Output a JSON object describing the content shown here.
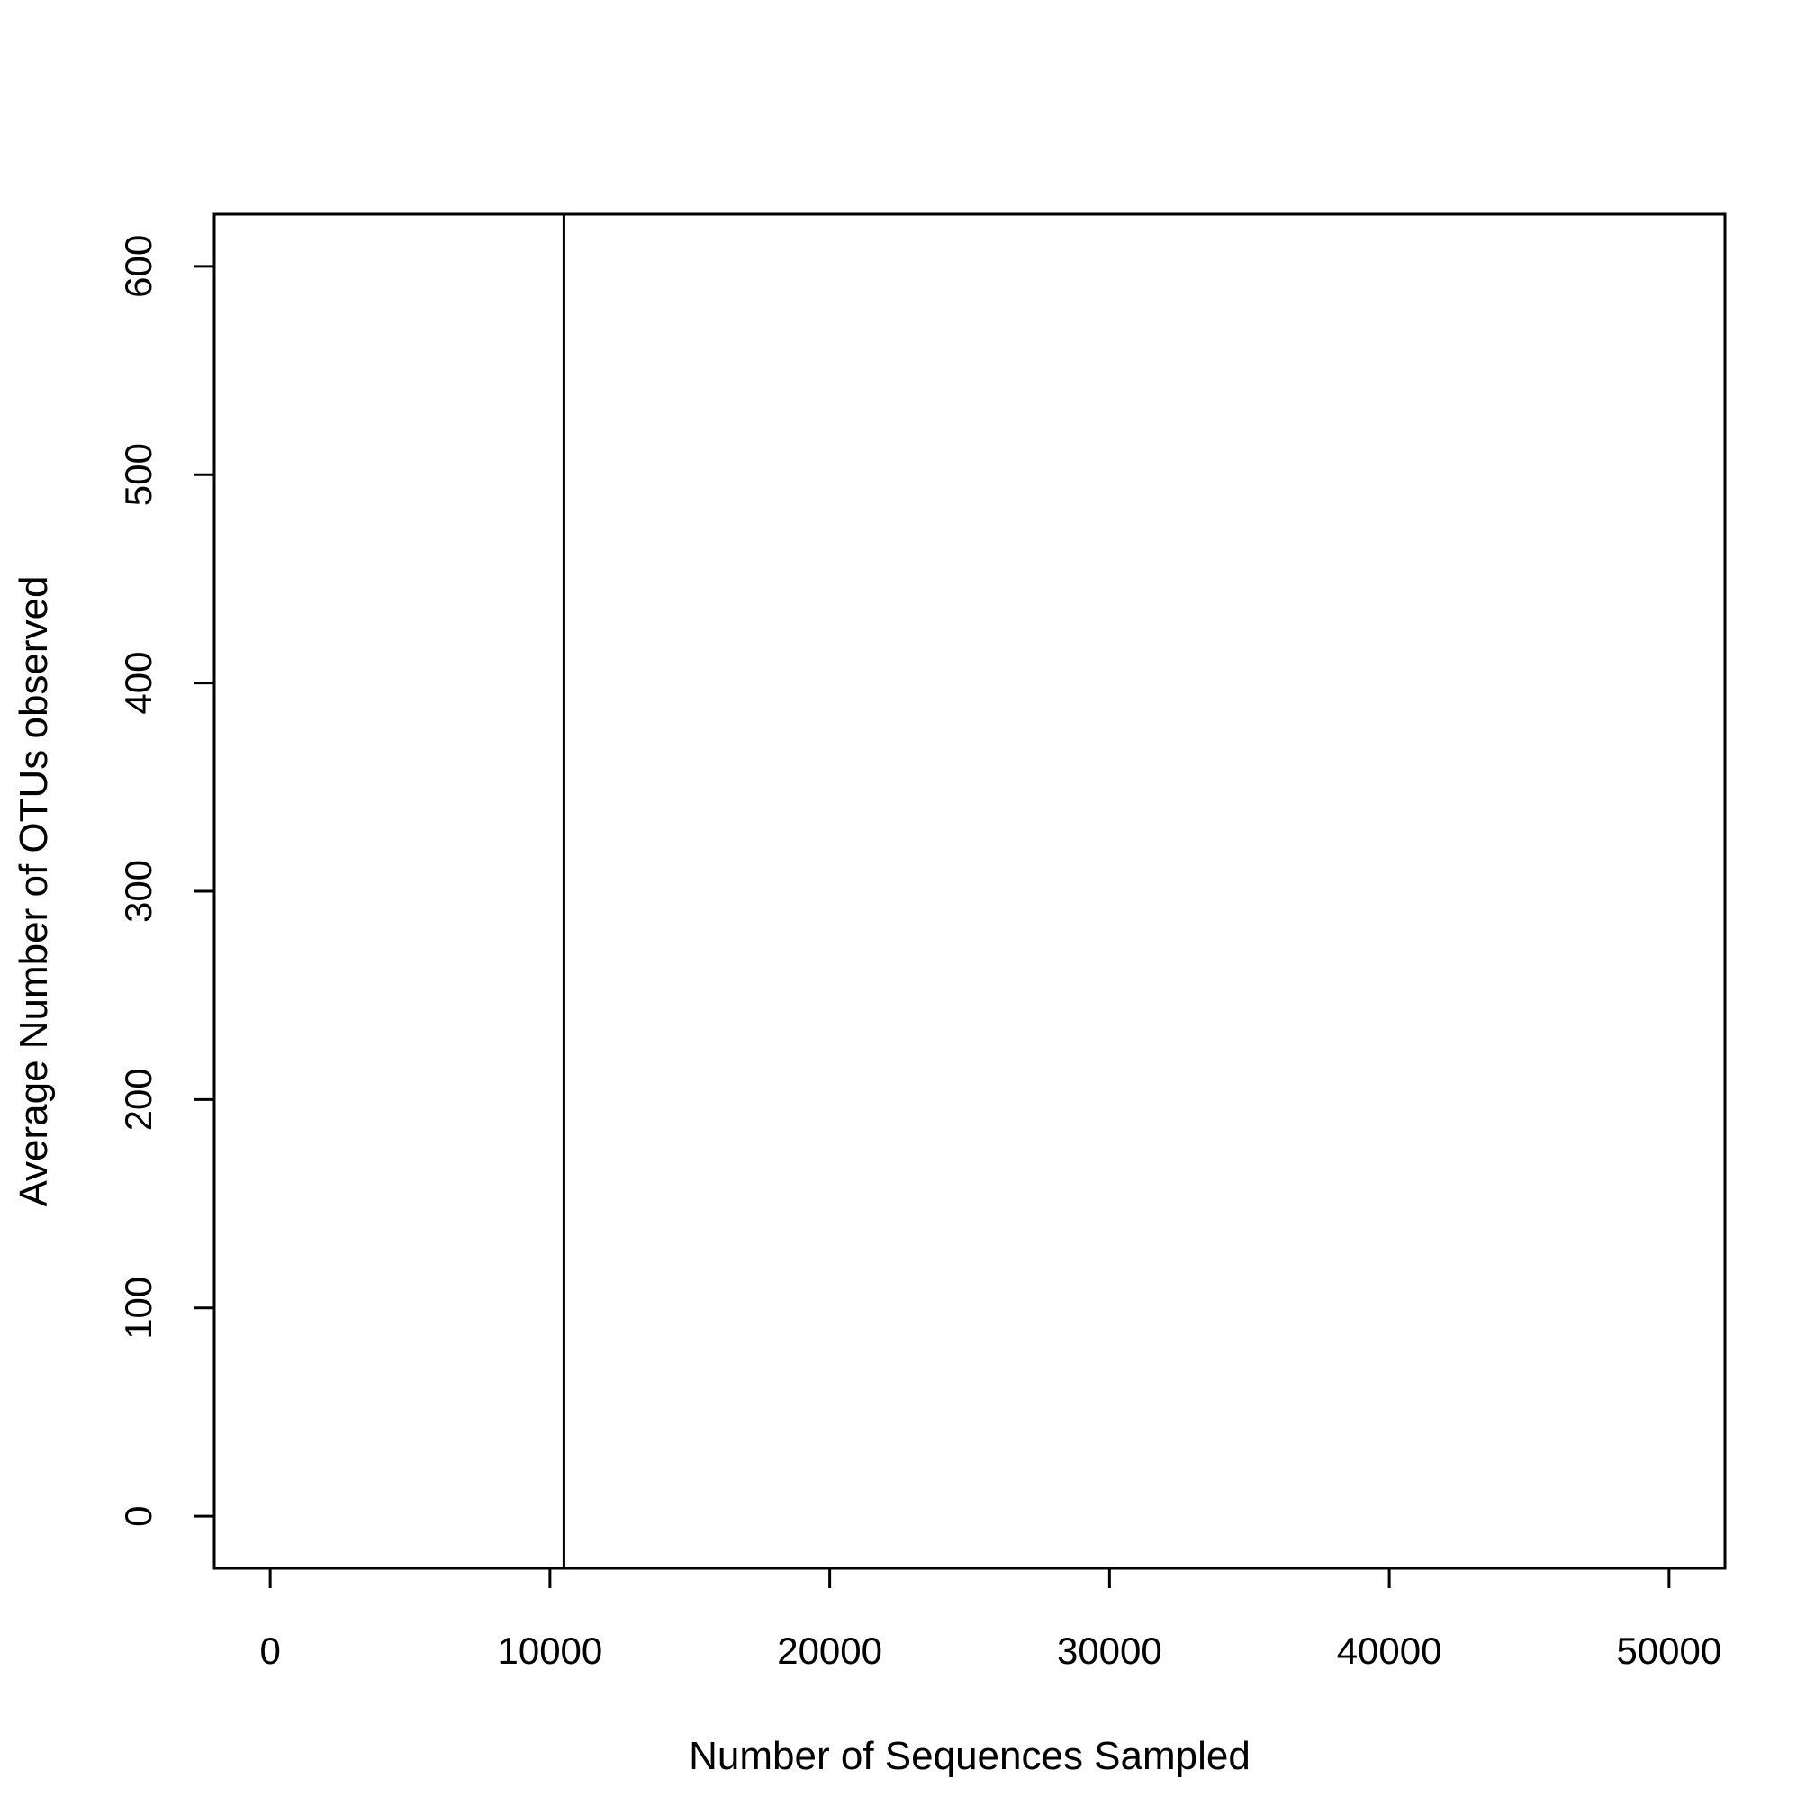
{
  "chart_data": {
    "type": "line",
    "title": "",
    "xlabel": "Number of Sequences Sampled",
    "ylabel": "Average Number of OTUs observed",
    "xlim": [
      -2000,
      52000
    ],
    "ylim": [
      -25,
      625
    ],
    "xticks": [
      0,
      10000,
      20000,
      30000,
      40000,
      50000
    ],
    "yticks": [
      0,
      100,
      200,
      300,
      400,
      500,
      600
    ],
    "grid": false,
    "legend": "none",
    "colors": {
      "axis": "#000000",
      "background": "#ffffff"
    },
    "series": [],
    "annotations": [
      {
        "type": "vline",
        "x": 10500
      }
    ]
  }
}
